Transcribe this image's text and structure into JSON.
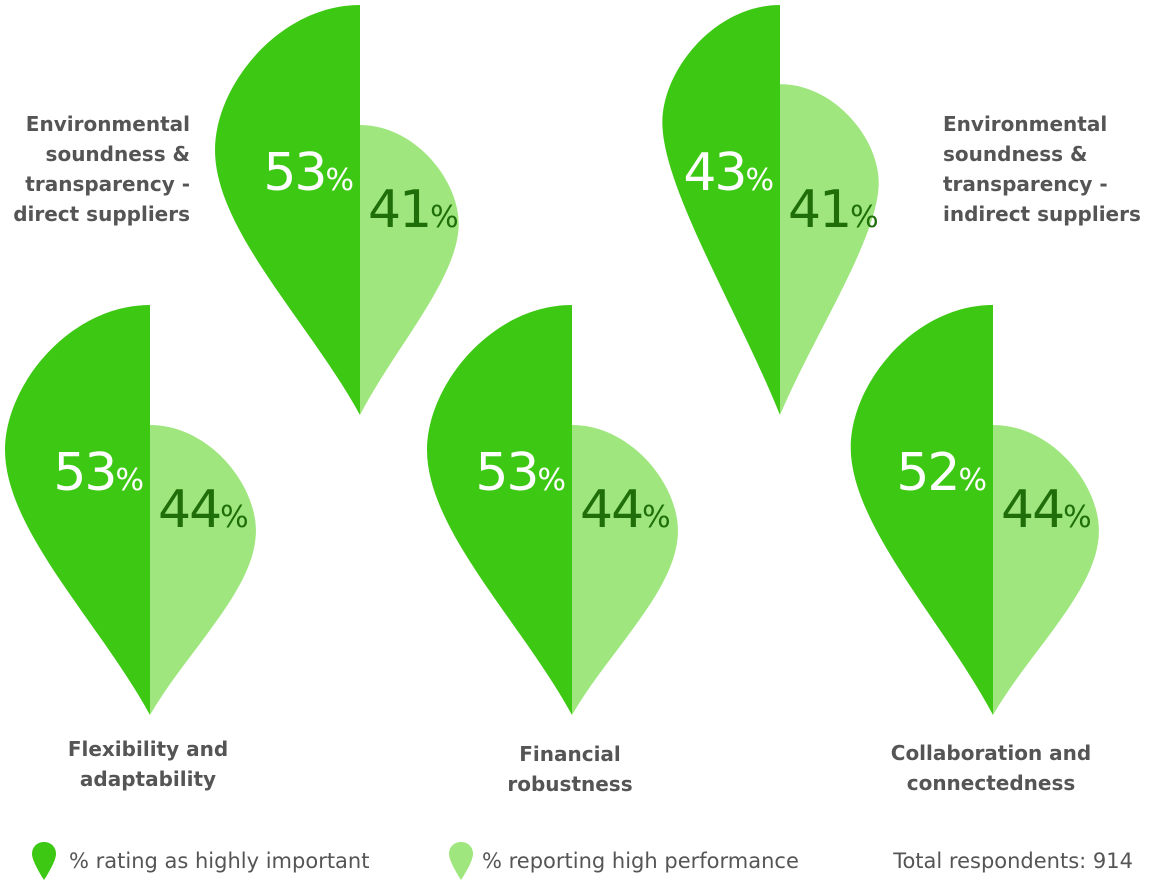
{
  "chart_data": {
    "type": "paired-pin",
    "series": [
      {
        "key": "important",
        "name": "% rating as highly important",
        "color": "#3dc814"
      },
      {
        "key": "performance",
        "name": "% reporting high performance",
        "color": "#9ee67d"
      }
    ],
    "categories": [
      {
        "id": "env-direct",
        "label_lines": [
          "Environmental",
          "soundness &",
          "transparency -",
          "direct suppliers"
        ],
        "important": 53,
        "performance": 41
      },
      {
        "id": "env-indirect",
        "label_lines": [
          "Environmental",
          "soundness &",
          "transparency -",
          "indirect suppliers"
        ],
        "important": 43,
        "performance": 41
      },
      {
        "id": "flexibility",
        "label_lines": [
          "Flexibility and",
          "adaptability"
        ],
        "important": 53,
        "performance": 44
      },
      {
        "id": "financial",
        "label_lines": [
          "Financial",
          "robustness"
        ],
        "important": 53,
        "performance": 44
      },
      {
        "id": "collaboration",
        "label_lines": [
          "Collaboration and",
          "connectedness"
        ],
        "important": 52,
        "performance": 44
      }
    ],
    "unit": "%",
    "footnote": "Total respondents: 914"
  },
  "legend": {
    "important_label": "% rating as highly important",
    "performance_label": "% reporting high performance"
  },
  "colors": {
    "important_fill": "#3dc814",
    "performance_fill": "#9ee67d",
    "important_text": "#ffffff",
    "performance_text": "#1f6e0a",
    "label_text": "#555555"
  }
}
